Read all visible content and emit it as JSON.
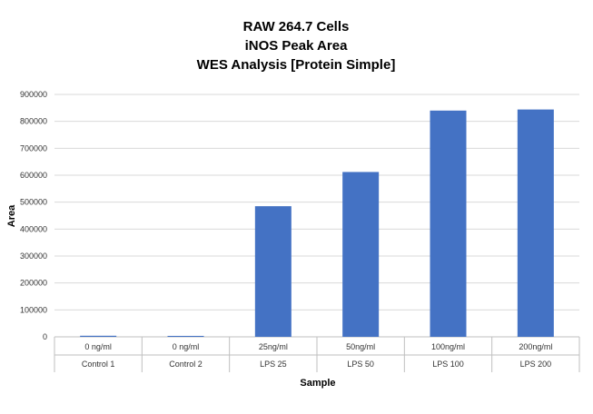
{
  "chart_data": {
    "type": "bar",
    "title_lines": [
      "RAW 264.7 Cells",
      "iNOS Peak Area",
      "WES Analysis [Protein Simple]"
    ],
    "xlabel": "Sample",
    "ylabel": "Area",
    "categories": [
      {
        "concentration": "0 ng/ml",
        "group": "Control 1"
      },
      {
        "concentration": "0 ng/ml",
        "group": "Control 2"
      },
      {
        "concentration": "25ng/ml",
        "group": "LPS 25"
      },
      {
        "concentration": "50ng/ml",
        "group": "LPS 50"
      },
      {
        "concentration": "100ng/ml",
        "group": "LPS 100"
      },
      {
        "concentration": "200ng/ml",
        "group": "LPS 200"
      }
    ],
    "values": [
      4000,
      3500,
      485000,
      612000,
      840000,
      844000
    ],
    "ylim": [
      0,
      900000
    ],
    "yticks": [
      "0",
      "100000",
      "200000",
      "300000",
      "400000",
      "500000",
      "600000",
      "700000",
      "800000",
      "900000"
    ],
    "grid": true,
    "bar_color": "#4472C4",
    "grid_color": "#d9d9d9"
  }
}
